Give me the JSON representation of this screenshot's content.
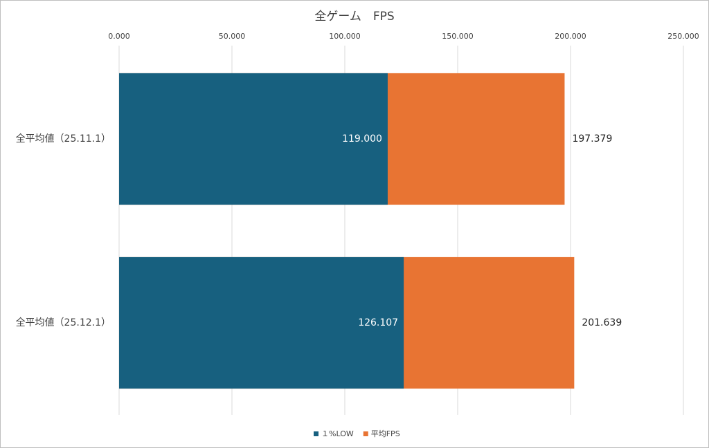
{
  "chart_data": {
    "type": "bar",
    "orientation": "horizontal",
    "overlap": true,
    "title": "全ゲーム　FPS",
    "categories": [
      "全平均値（25.11.1）",
      "全平均値（25.12.1）"
    ],
    "series": [
      {
        "name": "平均FPS",
        "color": "#e87433",
        "values": [
          197.379,
          201.639
        ],
        "value_labels": [
          "197.379",
          "201.639"
        ]
      },
      {
        "name": "１%LOW",
        "color": "#17607f",
        "values": [
          119.0,
          126.107
        ],
        "value_labels": [
          "119.000",
          "126.107"
        ]
      }
    ],
    "xlim": [
      0,
      250
    ],
    "xticks": [
      {
        "value": 0,
        "label": "0.000"
      },
      {
        "value": 50,
        "label": "50.000"
      },
      {
        "value": 100,
        "label": "100.000"
      },
      {
        "value": 150,
        "label": "150.000"
      },
      {
        "value": 200,
        "label": "200.000"
      },
      {
        "value": 250,
        "label": "250.000"
      }
    ],
    "grid": true,
    "legend": "bottom"
  }
}
